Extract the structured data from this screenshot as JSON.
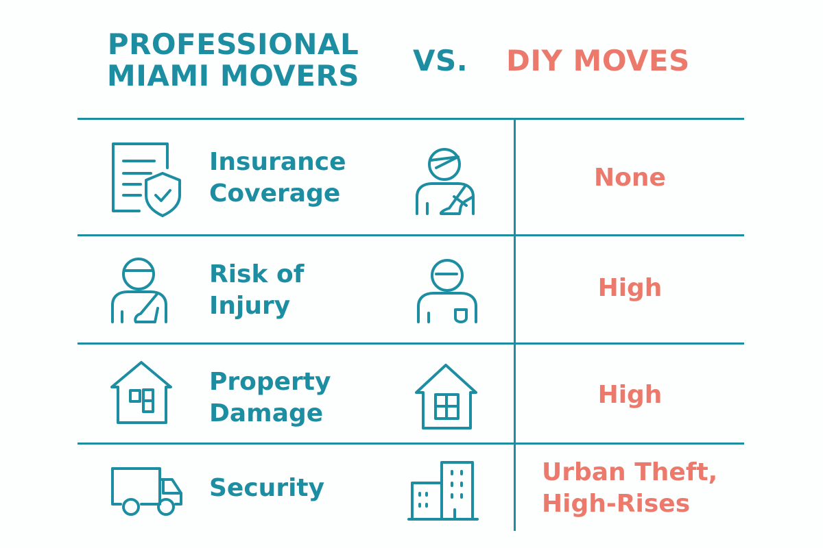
{
  "header": {
    "left_title_line1": "PROFESSIONAL",
    "left_title_line2": "MIAMI MOVERS",
    "vs": "VS.",
    "right_title": "DIY MOVES"
  },
  "colors": {
    "professional": "#1d8ea2",
    "diy": "#ec7a6c"
  },
  "rows": [
    {
      "label_line1": "Insurance",
      "label_line2": "Coverage",
      "left_icon": "document-shield-icon",
      "right_icon": "injured-person-icon",
      "diy_value": "None"
    },
    {
      "label_line1": "Risk of",
      "label_line2": "Injury",
      "left_icon": "injured-person-icon",
      "right_icon": "person-icon",
      "diy_value": "High"
    },
    {
      "label_line1": "Property",
      "label_line2": "Damage",
      "left_icon": "house-icon",
      "right_icon": "house-window-icon",
      "diy_value": "High"
    },
    {
      "label_line1": "Security",
      "left_icon": "truck-icon",
      "right_icon": "buildings-icon",
      "diy_value_line1": "Urban Theft,",
      "diy_value_line2": "High-Rises"
    }
  ]
}
